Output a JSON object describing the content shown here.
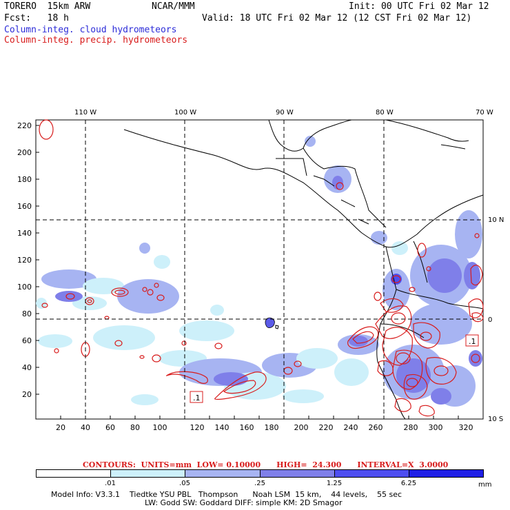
{
  "header": {
    "model": "TORERO  15km ARW",
    "center": "NCAR/MMM",
    "init": "Init: 00 UTC Fri 02 Mar 12",
    "fcst": "Fcst:   18 h",
    "valid": "Valid: 18 UTC Fri 02 Mar 12 (12 CST Fri 02 Mar 12)",
    "field1": "Column-integ. cloud hydrometeors",
    "field2": "Column-integ. precip. hydrometeors"
  },
  "map": {
    "lon_labels": [
      "110 W",
      "100 W",
      "90 W",
      "80 W",
      "70 W"
    ],
    "lat_labels": [
      "10 N",
      "0",
      "10 S"
    ],
    "x_ticks": [
      "20",
      "40",
      "60",
      "80",
      "100",
      "120",
      "140",
      "160",
      "180",
      "200",
      "220",
      "240",
      "260",
      "280",
      "300",
      "320"
    ],
    "y_ticks": [
      "20",
      "40",
      "60",
      "80",
      "100",
      "120",
      "140",
      "160",
      "180",
      "200",
      "220"
    ],
    "box_labels": [
      ".1",
      ".1"
    ]
  },
  "contours": {
    "text": "CONTOURS:  UNITS=mm  LOW= 0.10000      HIGH=  24.300      INTERVAL=X  3.0000"
  },
  "colorbar": {
    "labels": [
      ".01",
      ".05",
      ".25",
      "1.25",
      "6.25"
    ],
    "unit": "mm",
    "colors": [
      "#ffffff",
      "#cdf0fa",
      "#a7b4f2",
      "#7f7fe9",
      "#4e4ef0",
      "#1f1fe6"
    ]
  },
  "info": {
    "line1": "Model Info: V3.3.1    Tiedtke YSU PBL   Thompson      Noah LSM  15 km,    44 levels,    55 sec",
    "line2": "LW: Godd SW: Goddard DIFF: simple KM: 2D Smagor"
  }
}
